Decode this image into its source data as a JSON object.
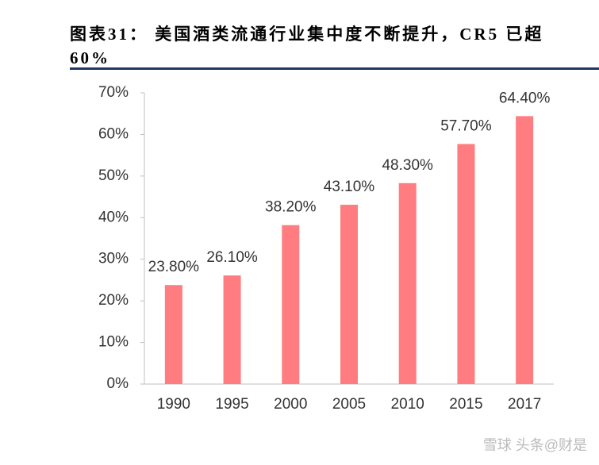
{
  "chart_data": {
    "type": "bar",
    "title": "图表31： 美国酒类流通行业集中度不断提升，CR5 已超 60%",
    "categories": [
      "1990",
      "1995",
      "2000",
      "2005",
      "2010",
      "2015",
      "2017"
    ],
    "values": [
      23.8,
      26.1,
      38.2,
      43.1,
      48.3,
      57.7,
      64.4
    ],
    "value_labels": [
      "23.80%",
      "26.10%",
      "38.20%",
      "43.10%",
      "48.30%",
      "57.70%",
      "64.40%"
    ],
    "color": "#ff7c80",
    "ylim": [
      0,
      70
    ],
    "yticks": [
      {
        "value": 0,
        "label": "0%"
      },
      {
        "value": 10,
        "label": "10%"
      },
      {
        "value": 20,
        "label": "20%"
      },
      {
        "value": 30,
        "label": "30%"
      },
      {
        "value": 40,
        "label": "40%"
      },
      {
        "value": 50,
        "label": "50%"
      },
      {
        "value": 60,
        "label": "60%"
      },
      {
        "value": 70,
        "label": "70%"
      }
    ],
    "grid": false,
    "watermark": "雪球 头条@财是"
  }
}
